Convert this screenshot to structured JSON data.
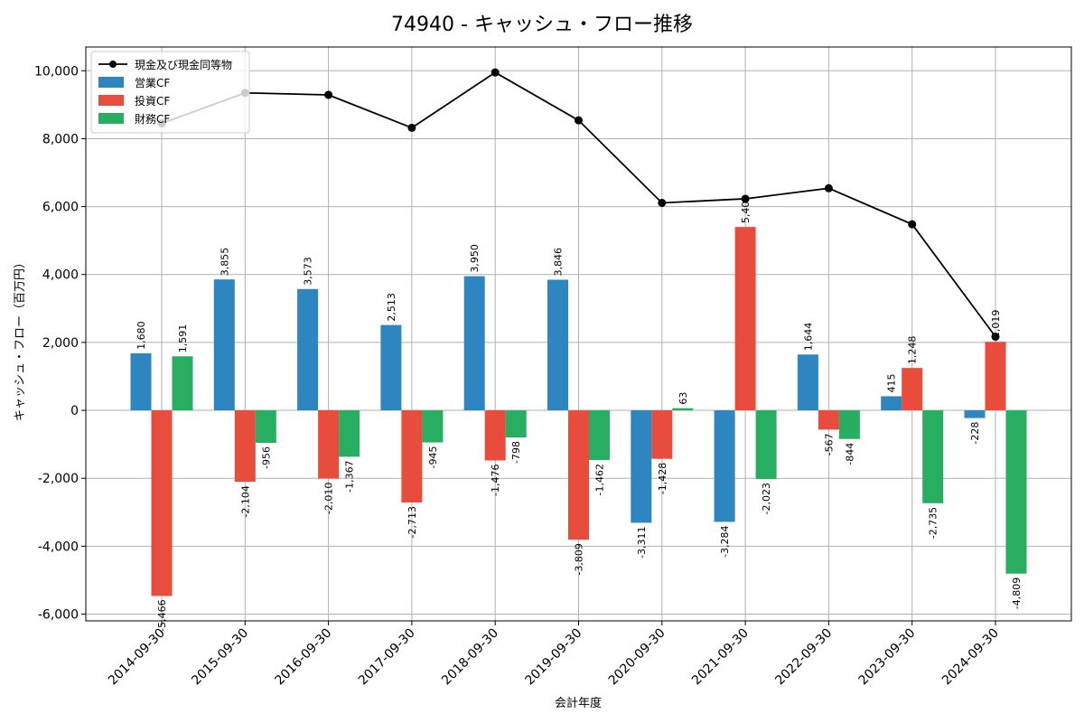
{
  "chart_data": {
    "type": "bar+line",
    "title": "74940 - キャッシュ・フロー推移",
    "xlabel": "会計年度",
    "ylabel": "キャッシュ・フロー（百万円）",
    "categories": [
      "2014-09-30",
      "2015-09-30",
      "2016-09-30",
      "2017-09-30",
      "2018-09-30",
      "2019-09-30",
      "2020-09-30",
      "2021-09-30",
      "2022-09-30",
      "2023-09-30",
      "2024-09-30"
    ],
    "ylim": [
      -6200,
      10700
    ],
    "yticks": [
      -6000,
      -4000,
      -2000,
      0,
      2000,
      4000,
      6000,
      8000,
      10000
    ],
    "ytick_labels": [
      "-6,000",
      "-4,000",
      "-2,000",
      "0",
      "2,000",
      "4,000",
      "6,000",
      "8,000",
      "10,000"
    ],
    "grid": true,
    "legend_position": "top-left",
    "series": [
      {
        "name": "営業CF",
        "type": "bar",
        "color": "#2e86c1",
        "values": [
          1680,
          3855,
          3573,
          2513,
          3950,
          3846,
          -3311,
          -3284,
          1644,
          415,
          -228
        ],
        "labels": [
          "1,680",
          "3,855",
          "3,573",
          "2,513",
          "3,950",
          "3,846",
          "-3,311",
          "-3,284",
          "1,644",
          "415",
          "-228"
        ]
      },
      {
        "name": "投資CF",
        "type": "bar",
        "color": "#e74c3c",
        "values": [
          -5466,
          -2104,
          -2010,
          -2713,
          -1476,
          -3809,
          -1428,
          5400,
          -567,
          1248,
          2019
        ],
        "labels": [
          "-5,466",
          "-2,104",
          "-2,010",
          "-2,713",
          "-1,476",
          "-3,809",
          "-1,428",
          "5,400",
          "-567",
          "1,248",
          "2,019"
        ]
      },
      {
        "name": "財務CF",
        "type": "bar",
        "color": "#27ae60",
        "values": [
          1591,
          -956,
          -1367,
          -945,
          -798,
          -1462,
          63,
          -2023,
          -844,
          -2735,
          -4809
        ],
        "labels": [
          "1,591",
          "-956",
          "-1,367",
          "-945",
          "-798",
          "-1,462",
          "63",
          "-2,023",
          "-844",
          "-2,735",
          "-4,809"
        ]
      },
      {
        "name": "現金及び現金同等物",
        "type": "line",
        "color": "#000000",
        "values": [
          8450,
          9350,
          9290,
          8320,
          9950,
          8540,
          6110,
          6230,
          6540,
          5480,
          2170
        ]
      }
    ]
  }
}
